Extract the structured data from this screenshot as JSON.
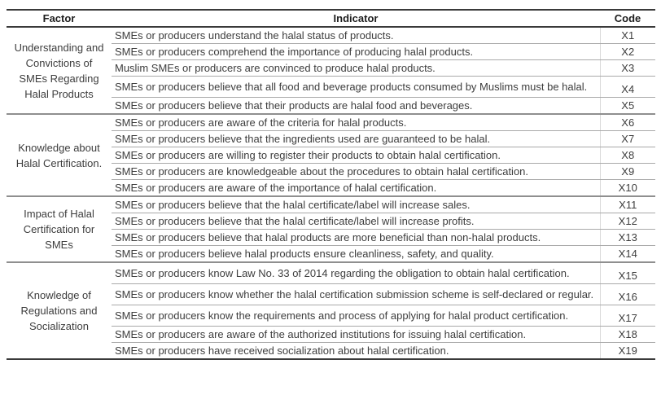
{
  "table": {
    "headers": {
      "factor": "Factor",
      "indicator": "Indicator",
      "code": "Code"
    },
    "groups": [
      {
        "factor": "Understanding and Convictions of SMEs Regarding Halal Products",
        "factor_lines": [
          "Understanding and",
          "Convictions of",
          "SMEs Regarding",
          "Halal Products"
        ],
        "rows": [
          {
            "indicator": "SMEs or producers understand the halal status of products.",
            "code": "X1"
          },
          {
            "indicator": "SMEs or producers comprehend the importance of producing halal products.",
            "code": "X2"
          },
          {
            "indicator": "Muslim SMEs or producers are convinced to produce halal products.",
            "code": "X3"
          },
          {
            "indicator": "SMEs or producers believe that all food and beverage products consumed by Muslims must be halal.",
            "code": "X4"
          },
          {
            "indicator": "SMEs or producers believe that their products are halal food and beverages.",
            "code": "X5"
          }
        ]
      },
      {
        "factor": "Knowledge about Halal Certification.",
        "factor_lines": [
          "Knowledge about",
          "Halal Certification."
        ],
        "rows": [
          {
            "indicator": "SMEs or producers are aware of the criteria for halal products.",
            "code": "X6"
          },
          {
            "indicator": "SMEs or producers believe that the ingredients used are guaranteed to be halal.",
            "code": "X7"
          },
          {
            "indicator": "SMEs or producers are willing to register their products to obtain halal certification.",
            "code": "X8"
          },
          {
            "indicator": "SMEs or producers are knowledgeable about the procedures to obtain halal certification.",
            "code": "X9"
          },
          {
            "indicator": "SMEs or producers are aware of the importance of halal certification.",
            "code": "X10"
          }
        ]
      },
      {
        "factor": "Impact of Halal Certification for SMEs",
        "factor_lines": [
          "Impact of Halal",
          "Certification for",
          "SMEs"
        ],
        "rows": [
          {
            "indicator": "SMEs or producers believe that the halal certificate/label will increase sales.",
            "code": "X11"
          },
          {
            "indicator": "SMEs or producers believe that the halal certificate/label will increase profits.",
            "code": "X12"
          },
          {
            "indicator": "SMEs or producers believe that halal products are more beneficial than non-halal products.",
            "code": "X13"
          },
          {
            "indicator": "SMEs or producers believe halal products ensure cleanliness, safety, and quality.",
            "code": "X14"
          }
        ]
      },
      {
        "factor": "Knowledge of Regulations and Socialization",
        "factor_lines": [
          "Knowledge of",
          "Regulations and",
          "Socialization"
        ],
        "rows": [
          {
            "indicator": "SMEs or producers know Law No. 33 of 2014 regarding the obligation to obtain halal certification.",
            "code": "X15"
          },
          {
            "indicator": "SMEs or producers know whether the halal certification submission scheme is self-declared or regular.",
            "code": "X16"
          },
          {
            "indicator": "SMEs or producers know the requirements and process of applying for halal product certification.",
            "code": "X17"
          },
          {
            "indicator": "SMEs or producers are aware of the authorized institutions for issuing halal certification.",
            "code": "X18"
          },
          {
            "indicator": "SMEs or producers have received socialization about halal certification.",
            "code": "X19"
          }
        ]
      }
    ]
  },
  "colors": {
    "text": "#3d3d3d",
    "header_text": "#1e1e1e",
    "border_dark": "#3a3a3a",
    "border_group": "#8f8f8f",
    "border_row": "#a9a9a9",
    "column_divider": "#d9d9d9",
    "background": "#ffffff"
  }
}
